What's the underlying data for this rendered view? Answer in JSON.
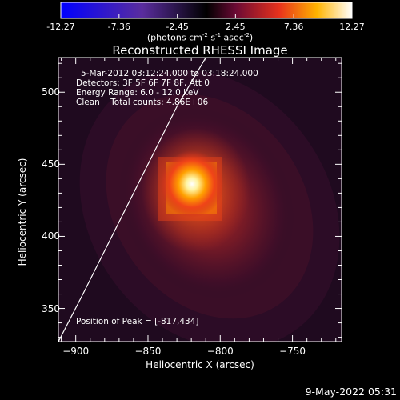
{
  "colorbar": {
    "tick_labels": [
      "-12.27",
      "-7.36",
      "-2.45",
      "2.45",
      "7.36",
      "12.27"
    ],
    "tick_values": [
      -12.27,
      -7.36,
      -2.45,
      2.45,
      7.36,
      12.27
    ],
    "range": [
      -12.27,
      12.27
    ],
    "unit_prefix": "(photons cm",
    "unit_sup1": "-2",
    "unit_mid": " s",
    "unit_sup2": "-1",
    "unit_mid2": " asec",
    "unit_sup3": "-2",
    "unit_suffix": ")"
  },
  "title": "Reconstructed RHESSI Image",
  "annotations": {
    "time": "5-Mar-2012 03:12:24.000 to 03:18:24.000",
    "detectors": "Detectors: 3F 5F 6F 7F 8F, Att 0",
    "energy": "Energy Range: 6.0 - 12.0 keV",
    "clean": "Clean    Total counts: 4.86E+06",
    "peak": "Position of Peak = [-817,434]"
  },
  "axes": {
    "xlabel": "Heliocentric X (arcsec)",
    "ylabel": "Heliocentric Y (arcsec)",
    "xlim": [
      -912,
      -716
    ],
    "ylim": [
      327,
      524
    ],
    "x_ticks": [
      -900,
      -850,
      -800,
      -750
    ],
    "x_tick_labels": [
      "−900",
      "−850",
      "−800",
      "−750"
    ],
    "y_ticks": [
      350,
      400,
      450,
      500
    ],
    "y_tick_labels": [
      "350",
      "400",
      "450",
      "500"
    ]
  },
  "peak": {
    "x": -817,
    "y": 434
  },
  "limb": [
    [
      -912,
      327
    ],
    [
      -895,
      360
    ],
    [
      -875,
      400
    ],
    [
      -855,
      440
    ],
    [
      -830,
      490
    ],
    [
      -810,
      524
    ]
  ],
  "date": "9-May-2022 05:31"
}
